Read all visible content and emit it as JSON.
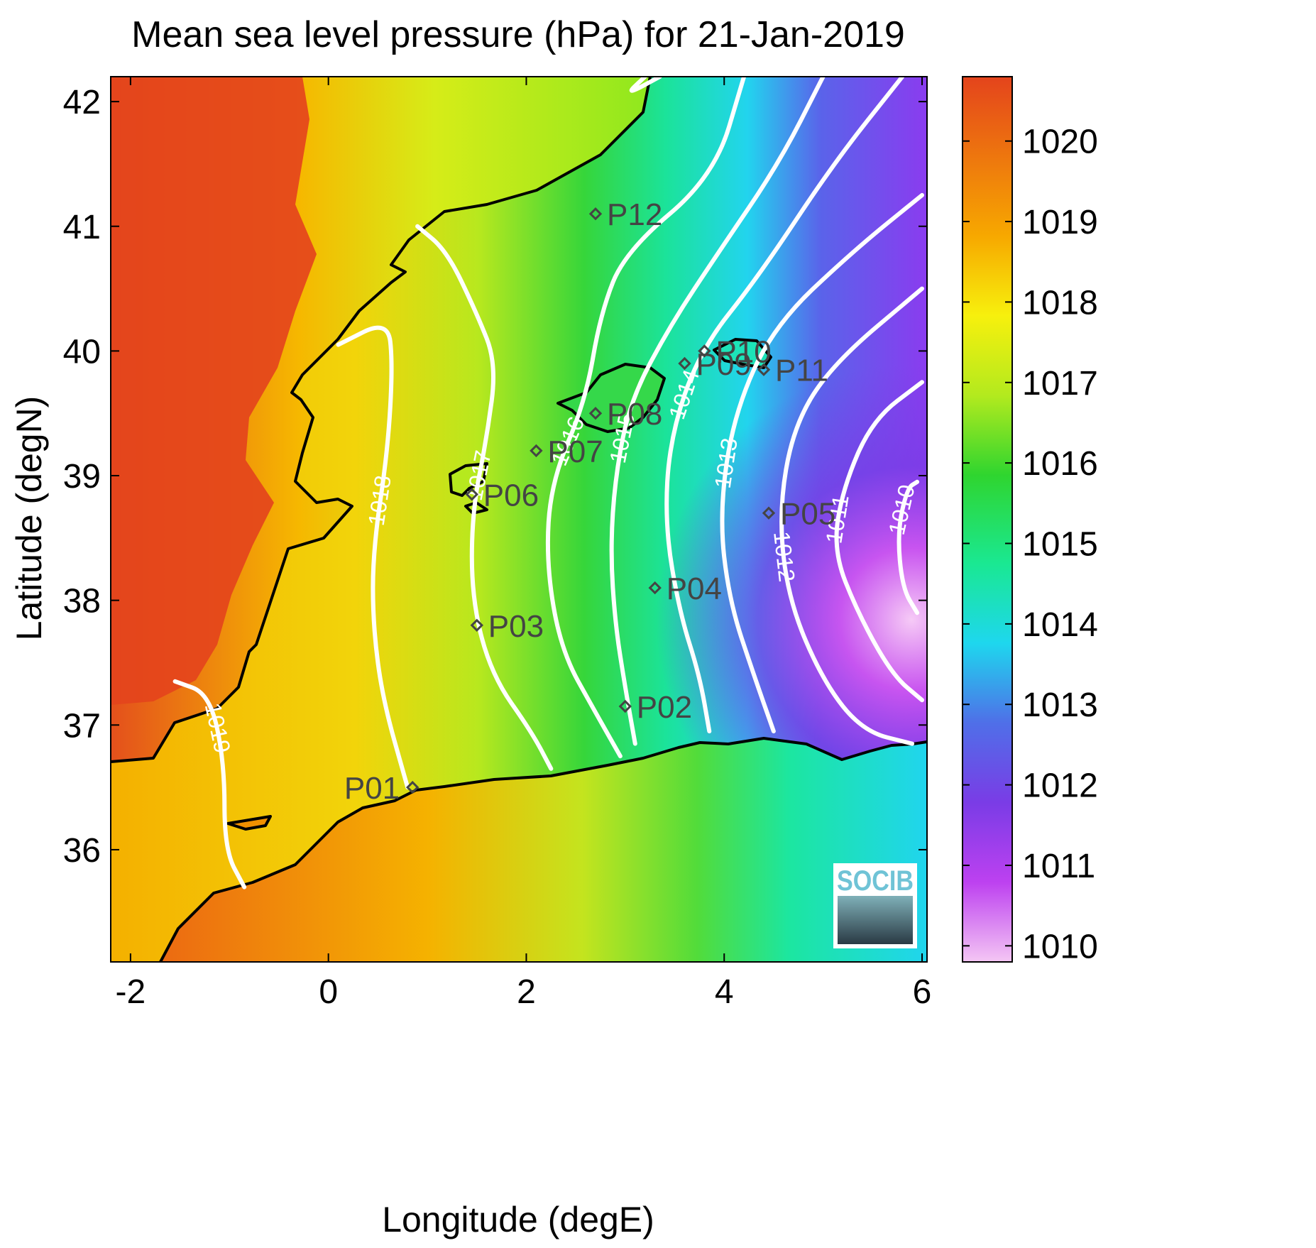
{
  "title": "Mean sea level pressure (hPa) for 21-Jan-2019",
  "xlabel": "Longitude (degE)",
  "ylabel": "Latitude (degN)",
  "x_ticks": [
    "-2",
    "0",
    "2",
    "4",
    "6"
  ],
  "y_ticks": [
    "36",
    "37",
    "38",
    "39",
    "40",
    "41",
    "42"
  ],
  "colorbar_ticks": [
    "1010",
    "1011",
    "1012",
    "1013",
    "1014",
    "1015",
    "1016",
    "1017",
    "1018",
    "1019",
    "1020"
  ],
  "logo_text": "SOCIB",
  "chart_data": {
    "type": "heatmap",
    "title": "Mean sea level pressure (hPa) for 21-Jan-2019",
    "xlabel": "Longitude (degE)",
    "ylabel": "Latitude (degN)",
    "xlim": [
      -2.2,
      6.05
    ],
    "ylim": [
      35.1,
      42.2
    ],
    "color_range": [
      1009.8,
      1020.8
    ],
    "colormap": [
      "#f4c6f4",
      "#bd41f0",
      "#7a3ce6",
      "#4f6fe8",
      "#1ed7ee",
      "#1ae892",
      "#2fd52f",
      "#b3ea1e",
      "#f7f00d",
      "#f7a800",
      "#e4441c"
    ],
    "contours": [
      {
        "level": "1010",
        "points": [
          [
            5.95,
            38.95
          ],
          [
            5.85,
            38.9
          ],
          [
            5.75,
            38.55
          ],
          [
            5.8,
            38.1
          ],
          [
            5.95,
            37.9
          ]
        ]
      },
      {
        "level": "1011",
        "points": [
          [
            6.0,
            39.75
          ],
          [
            5.5,
            39.45
          ],
          [
            5.2,
            38.9
          ],
          [
            5.1,
            38.4
          ],
          [
            5.35,
            37.9
          ],
          [
            5.7,
            37.4
          ],
          [
            6.0,
            37.2
          ]
        ]
      },
      {
        "level": "1012",
        "points": [
          [
            6.0,
            40.5
          ],
          [
            5.1,
            39.9
          ],
          [
            4.7,
            39.4
          ],
          [
            4.55,
            38.7
          ],
          [
            4.65,
            38.0
          ],
          [
            5.0,
            37.35
          ],
          [
            5.4,
            36.95
          ],
          [
            5.9,
            36.85
          ]
        ]
      },
      {
        "level": "1013",
        "points": [
          [
            6.0,
            41.25
          ],
          [
            5.3,
            40.8
          ],
          [
            4.5,
            40.2
          ],
          [
            4.1,
            39.5
          ],
          [
            3.95,
            38.7
          ],
          [
            4.05,
            38.0
          ],
          [
            4.3,
            37.4
          ],
          [
            4.5,
            36.95
          ]
        ]
      },
      {
        "level": "1014",
        "points": [
          [
            5.8,
            42.2
          ],
          [
            5.1,
            41.5
          ],
          [
            4.35,
            40.6
          ],
          [
            3.75,
            40.0
          ],
          [
            3.45,
            39.3
          ],
          [
            3.4,
            38.6
          ],
          [
            3.55,
            37.9
          ],
          [
            3.75,
            37.4
          ],
          [
            3.85,
            36.95
          ]
        ]
      },
      {
        "level": "1015",
        "points": [
          [
            5.0,
            42.2
          ],
          [
            4.55,
            41.5
          ],
          [
            3.95,
            40.8
          ],
          [
            3.45,
            40.2
          ],
          [
            3.05,
            39.6
          ],
          [
            2.9,
            39.0
          ],
          [
            2.85,
            38.4
          ],
          [
            2.9,
            37.8
          ],
          [
            3.0,
            37.3
          ],
          [
            3.1,
            36.85
          ]
        ]
      },
      {
        "level": "1016",
        "points": [
          [
            4.2,
            42.2
          ],
          [
            3.9,
            41.4
          ],
          [
            3.0,
            40.8
          ],
          [
            2.75,
            40.3
          ],
          [
            2.6,
            39.6
          ],
          [
            2.25,
            38.95
          ],
          [
            2.2,
            38.3
          ],
          [
            2.35,
            37.6
          ],
          [
            2.7,
            37.1
          ],
          [
            2.95,
            36.75
          ]
        ]
      },
      {
        "level": "1017",
        "points": [
          [
            0.9,
            41.0
          ],
          [
            1.2,
            40.8
          ],
          [
            1.5,
            40.3
          ],
          [
            1.7,
            39.9
          ],
          [
            1.6,
            39.3
          ],
          [
            1.45,
            38.7
          ],
          [
            1.45,
            38.0
          ],
          [
            1.65,
            37.4
          ],
          [
            2.05,
            36.95
          ],
          [
            2.25,
            36.65
          ]
        ]
      },
      {
        "level": "1018",
        "points": [
          [
            0.1,
            40.05
          ],
          [
            0.6,
            40.25
          ],
          [
            0.65,
            39.9
          ],
          [
            0.6,
            39.2
          ],
          [
            0.45,
            38.4
          ],
          [
            0.45,
            37.8
          ],
          [
            0.55,
            37.2
          ],
          [
            0.8,
            36.5
          ]
        ]
      },
      {
        "level": "1019",
        "points": [
          [
            -1.55,
            37.35
          ],
          [
            -1.2,
            37.25
          ],
          [
            -1.05,
            36.7
          ],
          [
            -1.05,
            36.0
          ],
          [
            -0.85,
            35.7
          ]
        ]
      },
      {
        "level": "1018",
        "points": [
          [
            3.2,
            42.2
          ],
          [
            3.0,
            42.05
          ],
          [
            3.35,
            42.2
          ]
        ]
      }
    ],
    "stations": [
      {
        "id": "P01",
        "lon": 0.85,
        "lat": 36.5
      },
      {
        "id": "P02",
        "lon": 3.0,
        "lat": 37.15
      },
      {
        "id": "P03",
        "lon": 1.5,
        "lat": 37.8
      },
      {
        "id": "P04",
        "lon": 3.3,
        "lat": 38.1
      },
      {
        "id": "P05",
        "lon": 4.45,
        "lat": 38.7
      },
      {
        "id": "P06",
        "lon": 1.45,
        "lat": 38.85
      },
      {
        "id": "P07",
        "lon": 2.1,
        "lat": 39.2
      },
      {
        "id": "P08",
        "lon": 2.7,
        "lat": 39.5
      },
      {
        "id": "P09",
        "lon": 3.6,
        "lat": 39.9
      },
      {
        "id": "P10",
        "lon": 3.8,
        "lat": 40.0
      },
      {
        "id": "P11",
        "lon": 4.4,
        "lat": 39.85
      },
      {
        "id": "P12",
        "lon": 2.7,
        "lat": 41.1
      }
    ]
  }
}
